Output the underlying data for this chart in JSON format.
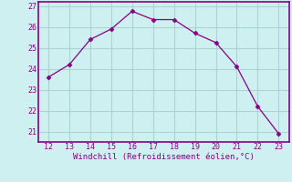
{
  "x": [
    12,
    13,
    14,
    15,
    16,
    17,
    18,
    19,
    20,
    21,
    22,
    23
  ],
  "y": [
    23.6,
    24.2,
    25.4,
    25.9,
    26.75,
    26.35,
    26.35,
    25.7,
    25.25,
    24.1,
    22.2,
    20.9
  ],
  "line_color": "#880088",
  "marker": "D",
  "marker_size": 2.5,
  "bg_color": "#cff0f0",
  "grid_color": "#aad4d4",
  "xlabel": "Windchill (Refroidissement éolien,°C)",
  "xlabel_color": "#880088",
  "tick_color": "#880088",
  "spine_color": "#880088",
  "xlim": [
    11.5,
    23.5
  ],
  "ylim": [
    20.5,
    27.2
  ],
  "xticks": [
    12,
    13,
    14,
    15,
    16,
    17,
    18,
    19,
    20,
    21,
    22,
    23
  ],
  "yticks": [
    21,
    22,
    23,
    24,
    25,
    26,
    27
  ]
}
